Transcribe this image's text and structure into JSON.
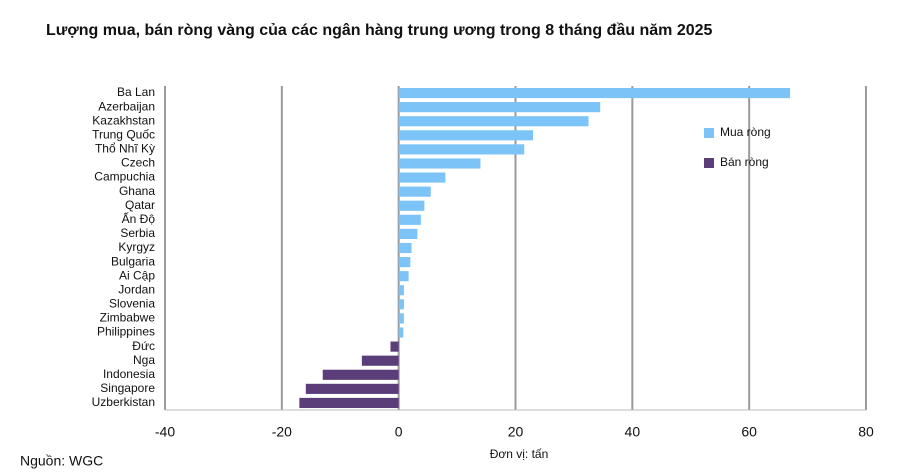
{
  "chart_data": {
    "type": "barh",
    "title": "Lượng mua, bán ròng vàng của các ngân hàng trung ương trong 8 tháng đầu năm 2025",
    "x_label": "Đơn vị: tấn",
    "source": "Nguồn: WGC",
    "categories": [
      "Ba Lan",
      "Azerbaijan",
      "Kazakhstan",
      "Trung Quốc",
      "Thổ Nhĩ Kỳ",
      "Czech",
      "Campuchia",
      "Ghana",
      "Qatar",
      "Ấn Độ",
      "Serbia",
      "Kyrgyz",
      "Bulgaria",
      "Ai Cập",
      "Jordan",
      "Slovenia",
      "Zimbabwe",
      "Philippines",
      "Đức",
      "Nga",
      "Indonesia",
      "Singapore",
      "Uzberkistan"
    ],
    "series": [
      {
        "name": "Mua ròng",
        "color": "#7cc4f7",
        "values": [
          67,
          34.5,
          32.5,
          23,
          21.5,
          14,
          8,
          5.5,
          4.4,
          3.8,
          3.2,
          2.2,
          2,
          1.7,
          0.9,
          0.9,
          0.9,
          0.8,
          null,
          null,
          null,
          null,
          null
        ]
      },
      {
        "name": "Bán ròng",
        "color": "#5b3d7a",
        "values": [
          null,
          null,
          null,
          null,
          null,
          null,
          null,
          null,
          null,
          null,
          null,
          null,
          null,
          null,
          null,
          null,
          null,
          null,
          -1.4,
          -6.3,
          -13,
          -15.9,
          -17
        ]
      }
    ],
    "xlim": [
      -40,
      80
    ],
    "xticks": [
      -40,
      -20,
      0,
      20,
      40,
      60,
      80
    ],
    "grid": true
  }
}
